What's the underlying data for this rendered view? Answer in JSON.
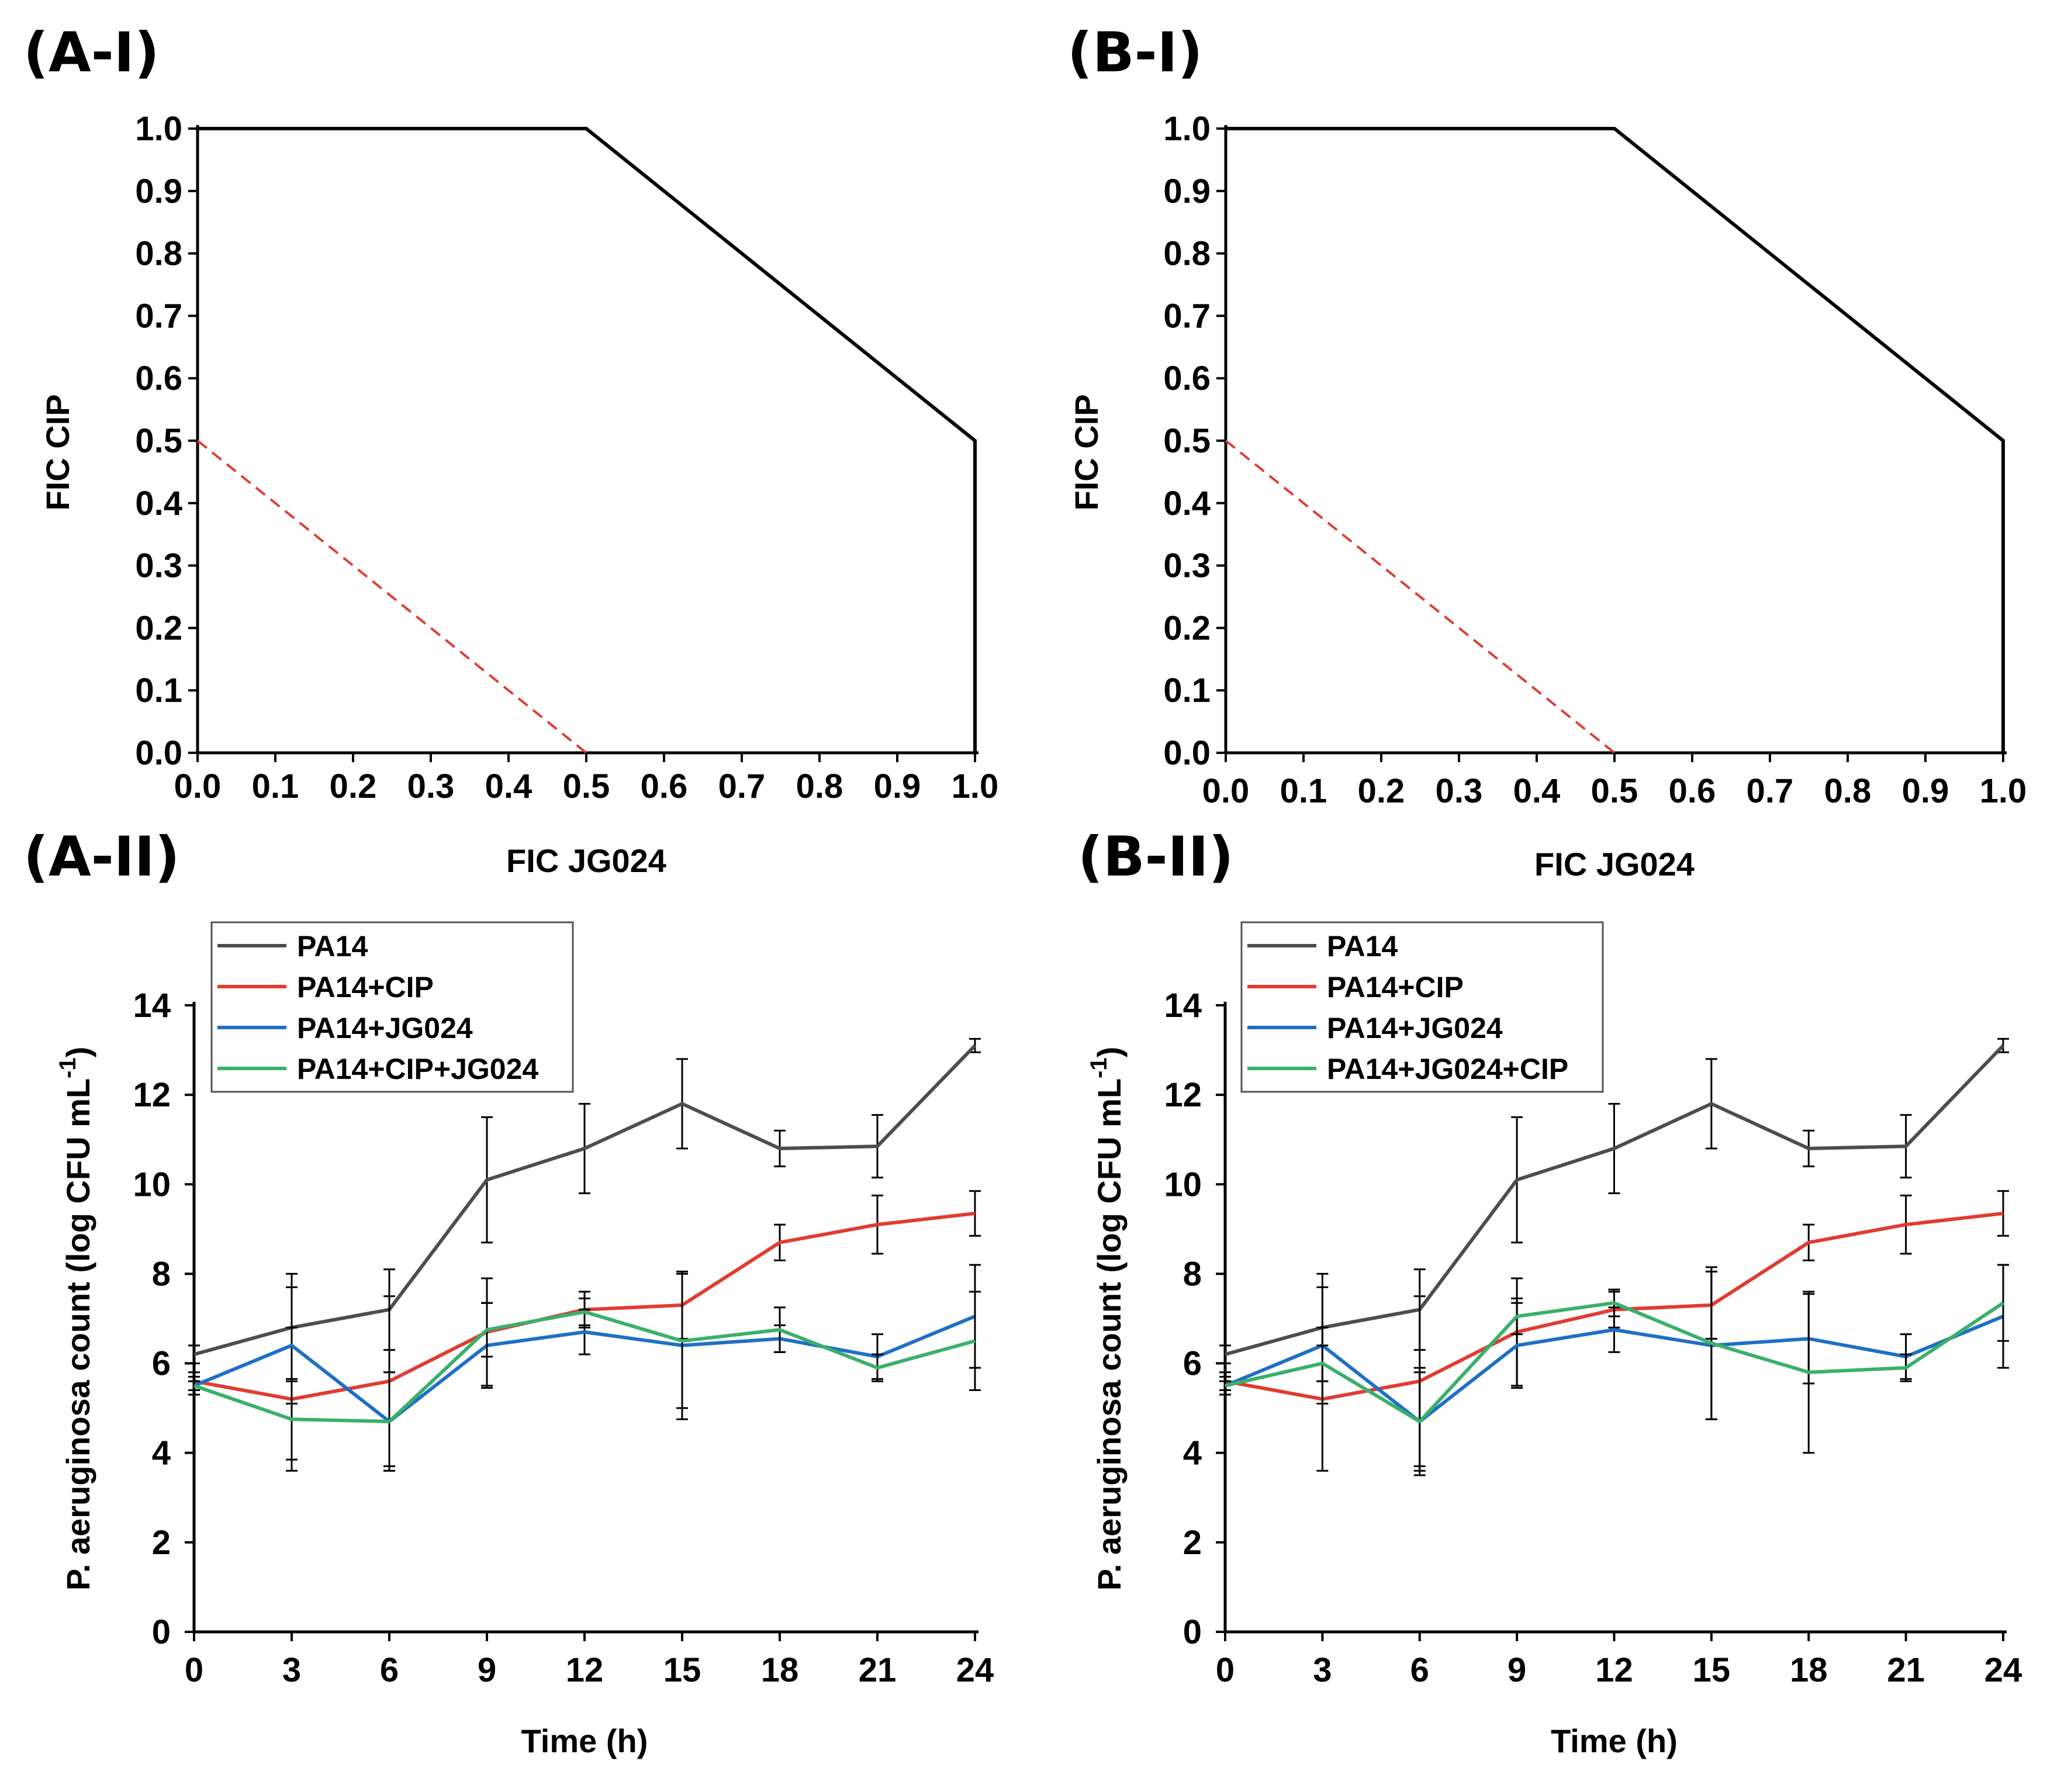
{
  "chart_data": [
    {
      "panel": "(A-I)",
      "type": "line",
      "title": "",
      "xlabel": "FIC JG024",
      "ylabel": "FIC CIP",
      "xlim": [
        0,
        1
      ],
      "ylim": [
        0,
        1
      ],
      "xticks": [
        "0.0",
        "0.1",
        "0.2",
        "0.3",
        "0.4",
        "0.5",
        "0.6",
        "0.7",
        "0.8",
        "0.9",
        "1.0"
      ],
      "yticks": [
        "0.0",
        "0.1",
        "0.2",
        "0.3",
        "0.4",
        "0.5",
        "0.6",
        "0.7",
        "0.8",
        "0.9",
        "1.0"
      ],
      "series": [
        {
          "name": "isobologram",
          "color": "#000000",
          "dashed": false,
          "x": [
            0,
            0.5,
            1.0,
            1.0
          ],
          "y": [
            1.0,
            1.0,
            0.5,
            0.0
          ]
        },
        {
          "name": "synergy line",
          "color": "#e03c31",
          "dashed": true,
          "x": [
            0,
            0.5
          ],
          "y": [
            0.5,
            0.0
          ]
        }
      ]
    },
    {
      "panel": "(B-I)",
      "type": "line",
      "title": "",
      "xlabel": "FIC JG024",
      "ylabel": "FIC CIP",
      "xlim": [
        0,
        1
      ],
      "ylim": [
        0,
        1
      ],
      "xticks": [
        "0.0",
        "0.1",
        "0.2",
        "0.3",
        "0.4",
        "0.5",
        "0.6",
        "0.7",
        "0.8",
        "0.9",
        "1.0"
      ],
      "yticks": [
        "0.0",
        "0.1",
        "0.2",
        "0.3",
        "0.4",
        "0.5",
        "0.6",
        "0.7",
        "0.8",
        "0.9",
        "1.0"
      ],
      "series": [
        {
          "name": "isobologram",
          "color": "#000000",
          "dashed": false,
          "x": [
            0,
            0.5,
            1.0,
            1.0
          ],
          "y": [
            1.0,
            1.0,
            0.5,
            0.0
          ]
        },
        {
          "name": "synergy line",
          "color": "#e03c31",
          "dashed": true,
          "x": [
            0,
            0.5
          ],
          "y": [
            0.5,
            0.0
          ]
        }
      ]
    },
    {
      "panel": "(A-II)",
      "type": "line",
      "title": "",
      "xlabel": "Time (h)",
      "ylabel_main": "P. aeruginosa count (log CFU mL",
      "ylabel_sup": "-1",
      "ylabel_end": ")",
      "xlim": [
        0,
        24
      ],
      "ylim": [
        0,
        14
      ],
      "x": [
        0,
        3,
        6,
        9,
        12,
        15,
        18,
        21,
        24
      ],
      "xticks": [
        "0",
        "3",
        "6",
        "9",
        "12",
        "15",
        "18",
        "21",
        "24"
      ],
      "yticks": [
        "0",
        "2",
        "4",
        "6",
        "8",
        "10",
        "12",
        "14"
      ],
      "legend": [
        "PA14",
        "PA14+CIP",
        "PA14+JG024",
        "PA14+CIP+JG024"
      ],
      "series": [
        {
          "name": "PA14",
          "color": "#4d4d4d",
          "values": [
            6.2,
            6.8,
            7.2,
            10.1,
            10.8,
            11.8,
            10.8,
            10.85,
            13.1
          ],
          "errors": [
            0.2,
            1.2,
            0.9,
            1.4,
            1.0,
            1.0,
            0.4,
            0.7,
            0.15
          ]
        },
        {
          "name": "PA14+CIP",
          "color": "#e03c31",
          "values": [
            5.6,
            5.2,
            5.6,
            6.7,
            7.2,
            7.3,
            8.7,
            9.1,
            9.35
          ],
          "errors": [
            0.2,
            1.6,
            1.9,
            1.2,
            0.4,
            0.75,
            0.4,
            0.65,
            0.5
          ]
        },
        {
          "name": "PA14+JG024",
          "color": "#1f6fc5",
          "values": [
            5.5,
            6.4,
            4.7,
            6.4,
            6.7,
            6.4,
            6.55,
            6.15,
            7.05
          ],
          "errors": [
            0.2,
            1.3,
            1.1,
            0.95,
            0.5,
            1.65,
            0.3,
            0.5,
            1.15
          ]
        },
        {
          "name": "PA14+CIP+JG024",
          "color": "#3ab06a",
          "values": [
            5.5,
            4.75,
            4.7,
            6.75,
            7.15,
            6.5,
            6.75,
            5.9,
            6.5
          ],
          "errors": [
            0.1,
            0.9,
            1.1,
            0.6,
            0.3,
            1.5,
            0.5,
            0.3,
            1.1
          ]
        }
      ]
    },
    {
      "panel": "(B-II)",
      "type": "line",
      "title": "",
      "xlabel": "Time (h)",
      "ylabel_main": "P. aeruginosa count (log CFU mL",
      "ylabel_sup": "-1",
      "ylabel_end": ")",
      "xlim": [
        0,
        24
      ],
      "ylim": [
        0,
        14
      ],
      "x": [
        0,
        3,
        6,
        9,
        12,
        15,
        18,
        21,
        24
      ],
      "xticks": [
        "0",
        "3",
        "6",
        "9",
        "12",
        "15",
        "18",
        "21",
        "24"
      ],
      "yticks": [
        "0",
        "2",
        "4",
        "6",
        "8",
        "10",
        "12",
        "14"
      ],
      "legend": [
        "PA14",
        "PA14+CIP",
        "PA14+JG024",
        "PA14+JG024+CIP"
      ],
      "series": [
        {
          "name": "PA14",
          "color": "#4d4d4d",
          "values": [
            6.2,
            6.8,
            7.2,
            10.1,
            10.8,
            11.8,
            10.8,
            10.85,
            13.1
          ],
          "errors": [
            0.2,
            1.2,
            0.9,
            1.4,
            1.0,
            1.0,
            0.4,
            0.7,
            0.15
          ]
        },
        {
          "name": "PA14+CIP",
          "color": "#e03c31",
          "values": [
            5.6,
            5.2,
            5.6,
            6.7,
            7.2,
            7.3,
            8.7,
            9.1,
            9.35
          ],
          "errors": [
            0.2,
            1.6,
            1.9,
            1.2,
            0.4,
            0.75,
            0.4,
            0.65,
            0.5
          ]
        },
        {
          "name": "PA14+JG024",
          "color": "#1f6fc5",
          "values": [
            5.5,
            6.4,
            4.7,
            6.4,
            6.75,
            6.4,
            6.55,
            6.15,
            7.05
          ],
          "errors": [
            0.2,
            1.3,
            1.2,
            0.95,
            0.5,
            1.65,
            1.0,
            0.5,
            1.15
          ]
        },
        {
          "name": "PA14+JG024+CIP",
          "color": "#3ab06a",
          "values": [
            5.5,
            6.0,
            4.7,
            7.05,
            7.35,
            6.45,
            5.8,
            5.9,
            7.35
          ],
          "errors": [
            0.1,
            0.4,
            1.1,
            0.4,
            0.3,
            1.7,
            1.8,
            0.3,
            0.85
          ]
        }
      ]
    }
  ]
}
